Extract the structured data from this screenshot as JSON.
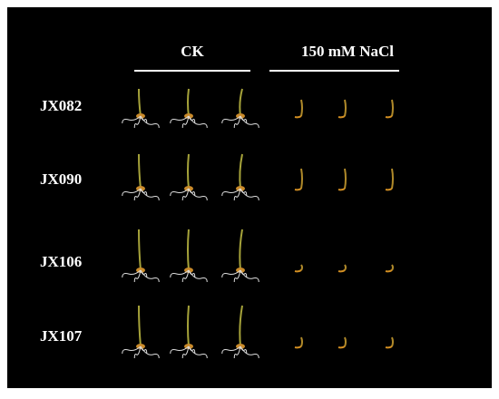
{
  "header": {
    "conditions": [
      "CK",
      "150 mM NaCl"
    ]
  },
  "rows": [
    "JX082",
    "JX090",
    "JX106",
    "JX107"
  ]
}
